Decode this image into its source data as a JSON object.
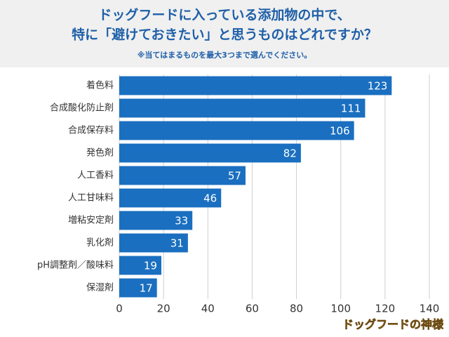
{
  "chart_data": {
    "type": "barh",
    "title": [
      "ドッグフードに入っている添加物の中で、",
      "特に「避けておきたい」と思うものはどれですか？"
    ],
    "subtitle": "※当てはまるものを最大3つまで選んでください。",
    "categories": [
      "着色料",
      "合成酸化防止剤",
      "合成保存料",
      "発色剤",
      "人工香料",
      "人工甘味料",
      "増粘安定剤",
      "乳化剤",
      "pH調整剤／酸味料",
      "保湿剤"
    ],
    "values": [
      123,
      111,
      106,
      82,
      57,
      46,
      33,
      31,
      19,
      17
    ],
    "color": "#1a6fc0",
    "xlim": [
      0,
      140
    ],
    "xticks": [
      0,
      20,
      40,
      60,
      80,
      100,
      120,
      140
    ],
    "grid": true,
    "watermark": "ドッグフードの神様"
  }
}
